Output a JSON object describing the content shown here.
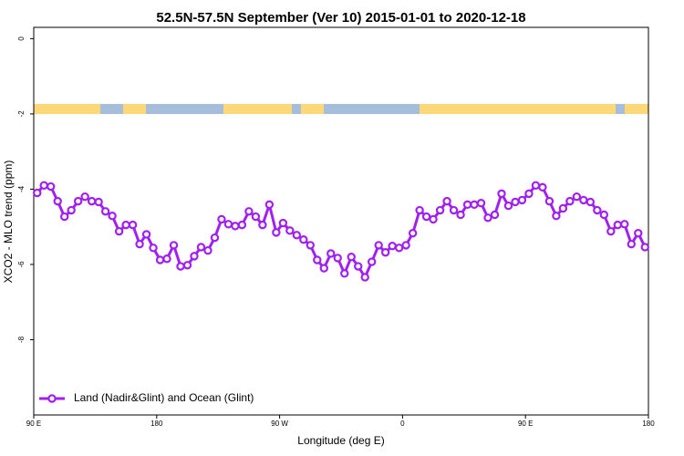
{
  "chart_data": {
    "type": "line",
    "title": "52.5N-57.5N September (Ver 10)   2015-01-01 to 2020-12-18",
    "x_label": "Longitude (deg E)",
    "y_label": "XCO2 - MLO trend (ppm)",
    "xlim": [
      90,
      540
    ],
    "ylim": [
      -10,
      0.3
    ],
    "xticks": [
      {
        "value": 90,
        "label": "90 E"
      },
      {
        "value": 180,
        "label": "180"
      },
      {
        "value": 270,
        "label": "90 W"
      },
      {
        "value": 360,
        "label": "0"
      },
      {
        "value": 450,
        "label": "90 E"
      },
      {
        "value": 540,
        "label": "180"
      }
    ],
    "yticks": [
      -8,
      -6,
      -4,
      -2,
      0
    ],
    "legend": "bottom-left",
    "x": [
      92.5,
      97.5,
      102.5,
      107.5,
      112.5,
      117.5,
      122.5,
      127.5,
      132.5,
      137.5,
      142.5,
      147.5,
      152.5,
      157.5,
      162.5,
      167.5,
      172.5,
      177.5,
      182.5,
      187.5,
      192.5,
      197.5,
      202.5,
      207.5,
      212.5,
      217.5,
      222.5,
      227.5,
      232.5,
      237.5,
      242.5,
      247.5,
      252.5,
      257.5,
      262.5,
      267.5,
      272.5,
      277.5,
      282.5,
      287.5,
      292.5,
      297.5,
      302.5,
      307.5,
      312.5,
      317.5,
      322.5,
      327.5,
      332.5,
      337.5,
      342.5,
      347.5,
      352.5,
      357.5,
      362.5,
      367.5,
      372.5,
      377.5,
      382.5,
      387.5,
      392.5,
      397.5,
      402.5,
      407.5,
      412.5,
      417.5,
      422.5,
      427.5,
      432.5,
      437.5,
      442.5,
      447.5,
      452.5,
      457.5,
      462.5,
      467.5,
      472.5,
      477.5,
      482.5,
      487.5,
      492.5,
      497.5,
      502.5,
      507.5,
      512.5,
      517.5,
      522.5,
      527.5,
      532.5,
      537.5
    ],
    "series": [
      {
        "name": "Land (Nadir&Glint) and Ocean (Glint)",
        "color": "#a020f0",
        "values": [
          -4.1,
          -3.9,
          -3.93,
          -4.32,
          -4.73,
          -4.56,
          -4.32,
          -4.2,
          -4.32,
          -4.34,
          -4.59,
          -4.71,
          -5.12,
          -4.95,
          -4.95,
          -5.46,
          -5.2,
          -5.56,
          -5.88,
          -5.85,
          -5.49,
          -6.05,
          -6.02,
          -5.78,
          -5.54,
          -5.63,
          -5.29,
          -4.8,
          -4.93,
          -4.98,
          -4.95,
          -4.59,
          -4.73,
          -4.95,
          -4.41,
          -5.15,
          -4.9,
          -5.1,
          -5.22,
          -5.34,
          -5.49,
          -5.88,
          -6.1,
          -5.71,
          -5.83,
          -6.24,
          -5.8,
          -6.05,
          -6.34,
          -5.93,
          -5.49,
          -5.68,
          -5.51,
          -5.56,
          -5.49,
          -5.17,
          -4.56,
          -4.73,
          -4.8,
          -4.56,
          -4.32,
          -4.56,
          -4.68,
          -4.41,
          -4.41,
          -4.37,
          -4.76,
          -4.68,
          -4.12,
          -4.44,
          -4.34,
          -4.29,
          -4.12,
          -3.9,
          -3.95,
          -4.32,
          -4.71,
          -4.51,
          -4.32,
          -4.2,
          -4.29,
          -4.34,
          -4.56,
          -4.68,
          -5.12,
          -4.95,
          -4.93,
          -5.46,
          -5.17,
          -5.54
        ]
      }
    ]
  }
}
